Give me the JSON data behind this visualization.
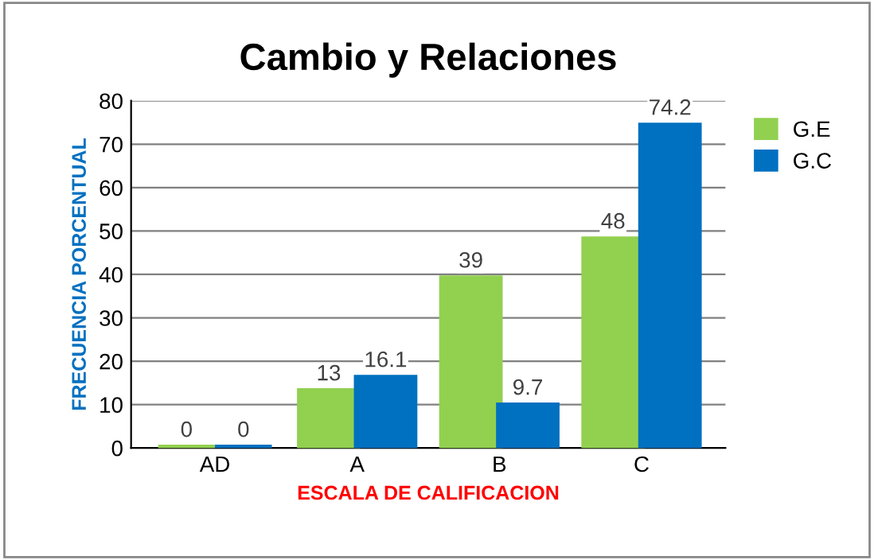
{
  "chart_data": {
    "type": "bar",
    "title": "Cambio y Relaciones",
    "xlabel": "ESCALA DE CALIFICACION",
    "ylabel": "FRECUENCIA PORCENTUAL",
    "categories": [
      "AD",
      "A",
      "B",
      "C"
    ],
    "series": [
      {
        "name": "G.E",
        "color": "#92d050",
        "values": [
          0,
          13,
          39,
          48
        ]
      },
      {
        "name": "G.C",
        "color": "#0070c0",
        "values": [
          0,
          16.1,
          9.7,
          74.2
        ]
      }
    ],
    "ylim": [
      0,
      80
    ],
    "yticks": [
      0,
      10,
      20,
      30,
      40,
      50,
      60,
      70,
      80
    ],
    "grid": "y",
    "legend": "right",
    "data_labels": true
  }
}
